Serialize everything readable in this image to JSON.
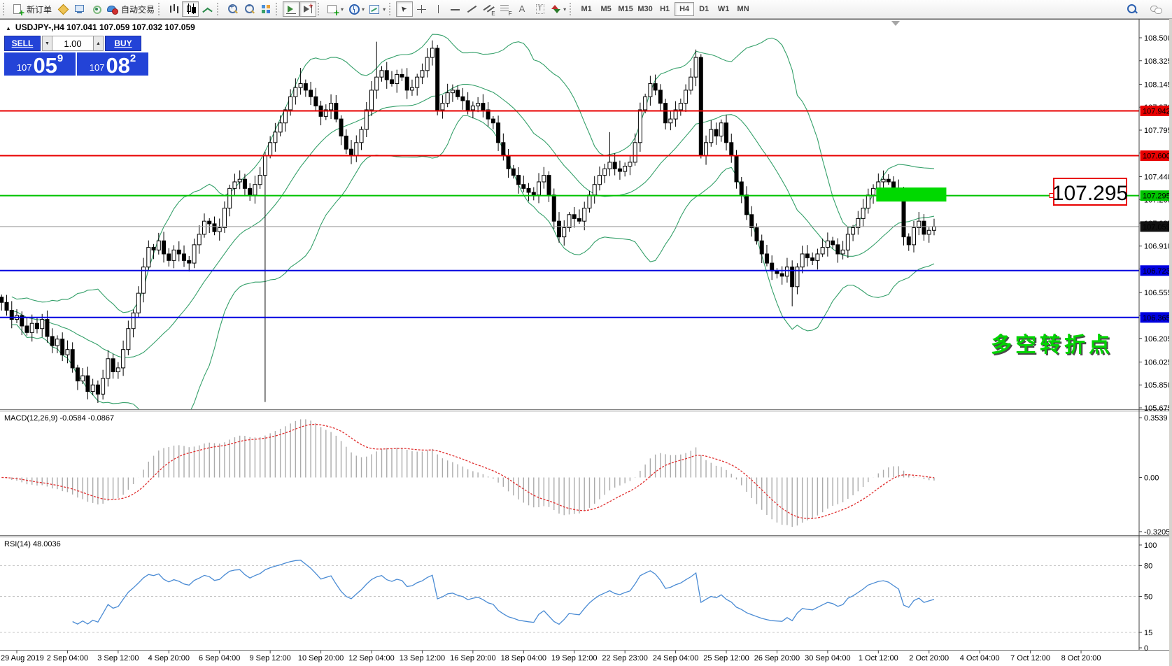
{
  "toolbar": {
    "glyphs": {
      "caret": "▾",
      "spin_up": "▲",
      "spin_down": "▼",
      "collapse": "▲"
    },
    "groups": [
      {
        "name": "trade",
        "items": [
          {
            "name": "new-order-button",
            "icon": "new-order",
            "label": "新订单"
          },
          {
            "name": "new-chart-button",
            "icon": "gold-diamond"
          },
          {
            "name": "terminal-button",
            "icon": "monitor"
          },
          {
            "name": "signals-button",
            "icon": "signal"
          },
          {
            "name": "auto-trading-button",
            "icon": "autotrade",
            "label": "自动交易"
          }
        ]
      },
      {
        "name": "chart-type",
        "items": [
          {
            "name": "bar-chart-button",
            "icon": "bars"
          },
          {
            "name": "candlestick-chart-button",
            "icon": "candles",
            "pressed": true
          },
          {
            "name": "line-chart-button",
            "icon": "linechart"
          }
        ]
      },
      {
        "name": "zoom",
        "items": [
          {
            "name": "zoom-in-button",
            "icon": "zoom-in"
          },
          {
            "name": "zoom-out-button",
            "icon": "zoom-out"
          },
          {
            "name": "tile-windows-button",
            "icon": "tile"
          }
        ]
      },
      {
        "name": "scroll",
        "items": [
          {
            "name": "auto-scroll-button",
            "icon": "autoscroll",
            "pressed": true
          },
          {
            "name": "chart-shift-button",
            "icon": "shift",
            "pressed": true
          }
        ]
      },
      {
        "name": "insert",
        "items": [
          {
            "name": "indicators-button",
            "icon": "indicators",
            "caret": true
          },
          {
            "name": "periods-button",
            "icon": "periods",
            "caret": true
          },
          {
            "name": "templates-button",
            "icon": "templates",
            "caret": true
          }
        ]
      },
      {
        "name": "objects",
        "items": [
          {
            "name": "cursor-button",
            "icon": "cursor",
            "pressed": true
          },
          {
            "name": "crosshair-button",
            "icon": "crosshair"
          },
          {
            "name": "vertical-line-button",
            "icon": "vline"
          },
          {
            "name": "horizontal-line-button",
            "icon": "hline"
          },
          {
            "name": "trendline-button",
            "icon": "trendline"
          },
          {
            "name": "equidistant-channel-button",
            "icon": "channel"
          },
          {
            "name": "fibonacci-button",
            "icon": "fibo"
          },
          {
            "name": "text-button",
            "icon": "text"
          },
          {
            "name": "text-label-button",
            "icon": "label"
          },
          {
            "name": "arrows-button",
            "icon": "shapes",
            "caret": true
          }
        ]
      }
    ],
    "timeframes": [
      "M1",
      "M5",
      "M15",
      "M30",
      "H1",
      "H4",
      "D1",
      "W1",
      "MN"
    ],
    "active_timeframe": "H4",
    "right_icons": [
      {
        "name": "search-icon",
        "icon": "search"
      },
      {
        "name": "community-chat-icon",
        "icon": "chat"
      }
    ]
  },
  "trade_panel": {
    "symbol_line": "USDJPY-,H4  107.041 107.059 107.032 107.059",
    "sell_label": "SELL",
    "buy_label": "BUY",
    "volume": "1.00",
    "sell_price": {
      "small": "107",
      "big": "05",
      "sup": "9"
    },
    "buy_price": {
      "small": "107",
      "big": "08",
      "sup": "2"
    }
  },
  "chart_data": {
    "type": "candlestick",
    "symbol": "USDJPY-",
    "timeframe": "H4",
    "ohlc_current": {
      "open": 107.041,
      "high": 107.059,
      "low": 107.032,
      "close": 107.059
    },
    "y_axis_labels": [
      "108.500",
      "108.325",
      "108.145",
      "107.970",
      "107.795",
      "107.620",
      "107.440",
      "107.265",
      "107.085",
      "106.910",
      "106.735",
      "106.555",
      "106.380",
      "106.205",
      "106.025",
      "105.850",
      "105.675"
    ],
    "time_labels": [
      {
        "bar": 3,
        "text": "29 Aug 2019"
      },
      {
        "bar": 13,
        "text": "2 Sep 04:00"
      },
      {
        "bar": 23,
        "text": "3 Sep 12:00"
      },
      {
        "bar": 33,
        "text": "4 Sep 20:00"
      },
      {
        "bar": 43,
        "text": "6 Sep 04:00"
      },
      {
        "bar": 53,
        "text": "9 Sep 12:00"
      },
      {
        "bar": 63,
        "text": "10 Sep 20:00"
      },
      {
        "bar": 73,
        "text": "12 Sep 04:00"
      },
      {
        "bar": 83,
        "text": "13 Sep 12:00"
      },
      {
        "bar": 93,
        "text": "16 Sep 20:00"
      },
      {
        "bar": 103,
        "text": "18 Sep 04:00"
      },
      {
        "bar": 113,
        "text": "19 Sep 12:00"
      },
      {
        "bar": 123,
        "text": "22 Sep 23:00"
      },
      {
        "bar": 133,
        "text": "24 Sep 04:00"
      },
      {
        "bar": 143,
        "text": "25 Sep 12:00"
      },
      {
        "bar": 153,
        "text": "26 Sep 20:00"
      },
      {
        "bar": 163,
        "text": "30 Sep 04:00"
      },
      {
        "bar": 173,
        "text": "1 Oct 12:00"
      },
      {
        "bar": 183,
        "text": "2 Oct 20:00"
      },
      {
        "bar": 193,
        "text": "4 Oct 04:00"
      },
      {
        "bar": 203,
        "text": "7 Oct 12:00"
      },
      {
        "bar": 213,
        "text": "8 Oct 20:00"
      }
    ],
    "closes": [
      106.48,
      106.42,
      106.35,
      106.38,
      106.3,
      106.25,
      106.32,
      106.28,
      106.35,
      106.22,
      106.15,
      106.2,
      106.08,
      106.12,
      105.98,
      105.88,
      105.92,
      105.8,
      105.85,
      105.78,
      105.9,
      106.05,
      105.95,
      105.98,
      106.12,
      106.28,
      106.4,
      106.55,
      106.75,
      106.9,
      106.88,
      106.95,
      106.85,
      106.8,
      106.88,
      106.85,
      106.8,
      106.78,
      106.92,
      107.0,
      107.1,
      107.08,
      107.02,
      107.05,
      107.2,
      107.35,
      107.4,
      107.42,
      107.35,
      107.3,
      107.38,
      107.45,
      107.6,
      107.7,
      107.78,
      107.85,
      107.95,
      108.05,
      108.12,
      108.15,
      108.1,
      108.05,
      107.98,
      107.9,
      107.95,
      108.0,
      107.88,
      107.75,
      107.65,
      107.6,
      107.7,
      107.8,
      107.95,
      108.1,
      108.2,
      108.25,
      108.18,
      108.15,
      108.22,
      108.2,
      108.1,
      108.12,
      108.2,
      108.25,
      108.35,
      108.42,
      107.95,
      108.0,
      108.08,
      108.1,
      108.05,
      108.02,
      107.95,
      107.98,
      108.0,
      107.95,
      107.88,
      107.85,
      107.7,
      107.6,
      107.5,
      107.45,
      107.38,
      107.35,
      107.32,
      107.3,
      107.4,
      107.45,
      107.3,
      107.1,
      106.98,
      107.05,
      107.15,
      107.12,
      107.1,
      107.2,
      107.3,
      107.38,
      107.45,
      107.5,
      107.55,
      107.5,
      107.48,
      107.52,
      107.55,
      107.7,
      107.95,
      108.05,
      108.15,
      108.1,
      108.0,
      107.85,
      107.88,
      107.95,
      108.0,
      108.1,
      108.2,
      108.35,
      107.6,
      107.7,
      107.8,
      107.75,
      107.85,
      107.7,
      107.6,
      107.4,
      107.3,
      107.15,
      107.05,
      106.95,
      106.85,
      106.78,
      106.72,
      106.7,
      106.68,
      106.75,
      106.6,
      106.75,
      106.85,
      106.82,
      106.8,
      106.85,
      106.9,
      106.95,
      106.92,
      106.85,
      106.88,
      107.0,
      107.05,
      107.12,
      107.2,
      107.3,
      107.35,
      107.4,
      107.42,
      107.4,
      107.35,
      107.3,
      106.98,
      106.92,
      107.05,
      107.1,
      107.0,
      107.03,
      107.059
    ],
    "wick_overrides": {
      "17": {
        "l": 105.74
      },
      "52": {
        "l": 105.72
      },
      "59": {
        "h": 108.27
      },
      "74": {
        "h": 108.47
      },
      "85": {
        "h": 108.48
      },
      "120": {
        "h": 107.78
      },
      "156": {
        "l": 106.45
      }
    },
    "hlines": [
      {
        "price": 107.942,
        "color": "#e80000",
        "w": 2,
        "badge_fg": "#ffffff"
      },
      {
        "price": 107.6,
        "color": "#e80000",
        "w": 2,
        "badge_fg": "#ffffff"
      },
      {
        "price": 107.295,
        "color": "#00c300",
        "w": 2,
        "badge_fg": "#103010"
      },
      {
        "price": 106.723,
        "color": "#0000e0",
        "w": 2,
        "badge_fg": "#ffffff"
      },
      {
        "price": 106.365,
        "color": "#0000e0",
        "w": 2,
        "badge_fg": "#ffffff"
      }
    ],
    "current_price_line": {
      "price": 107.059,
      "color": "#9a9a9a",
      "badge_bg": "#111111",
      "badge_fg": "#ffffff",
      "badge_text": "107.059"
    },
    "green_box": {
      "from_bar": 173,
      "to_bar": 186,
      "price_high": 107.357,
      "price_low": 107.25,
      "color": "#00d900"
    },
    "annotation_label": {
      "text": "107.295",
      "color": "#e80000"
    },
    "annotation_text": {
      "text": "多空转折点",
      "color": "#00d400"
    },
    "bollinger": {
      "period": 20,
      "deviation": 2,
      "color": "#35a06a"
    },
    "indicators": {
      "macd": {
        "label": "MACD(12,26,9) -0.0584 -0.0867",
        "fast": 12,
        "slow": 26,
        "signal": 9,
        "value": -0.0584,
        "signal_value": -0.0867,
        "axis_labels": [
          "0.3539",
          "0.00",
          "-0.3205"
        ],
        "histogram_color": "#ababab",
        "signal_color": "#e03030"
      },
      "rsi": {
        "label": "RSI(14) 48.0036",
        "period": 14,
        "value": 48.0036,
        "axis_labels": [
          "100",
          "80",
          "50",
          "15",
          "0"
        ],
        "levels": [
          80,
          50,
          15
        ],
        "line_color": "#4a8bd4",
        "level_color": "#c4c4c4"
      }
    }
  }
}
